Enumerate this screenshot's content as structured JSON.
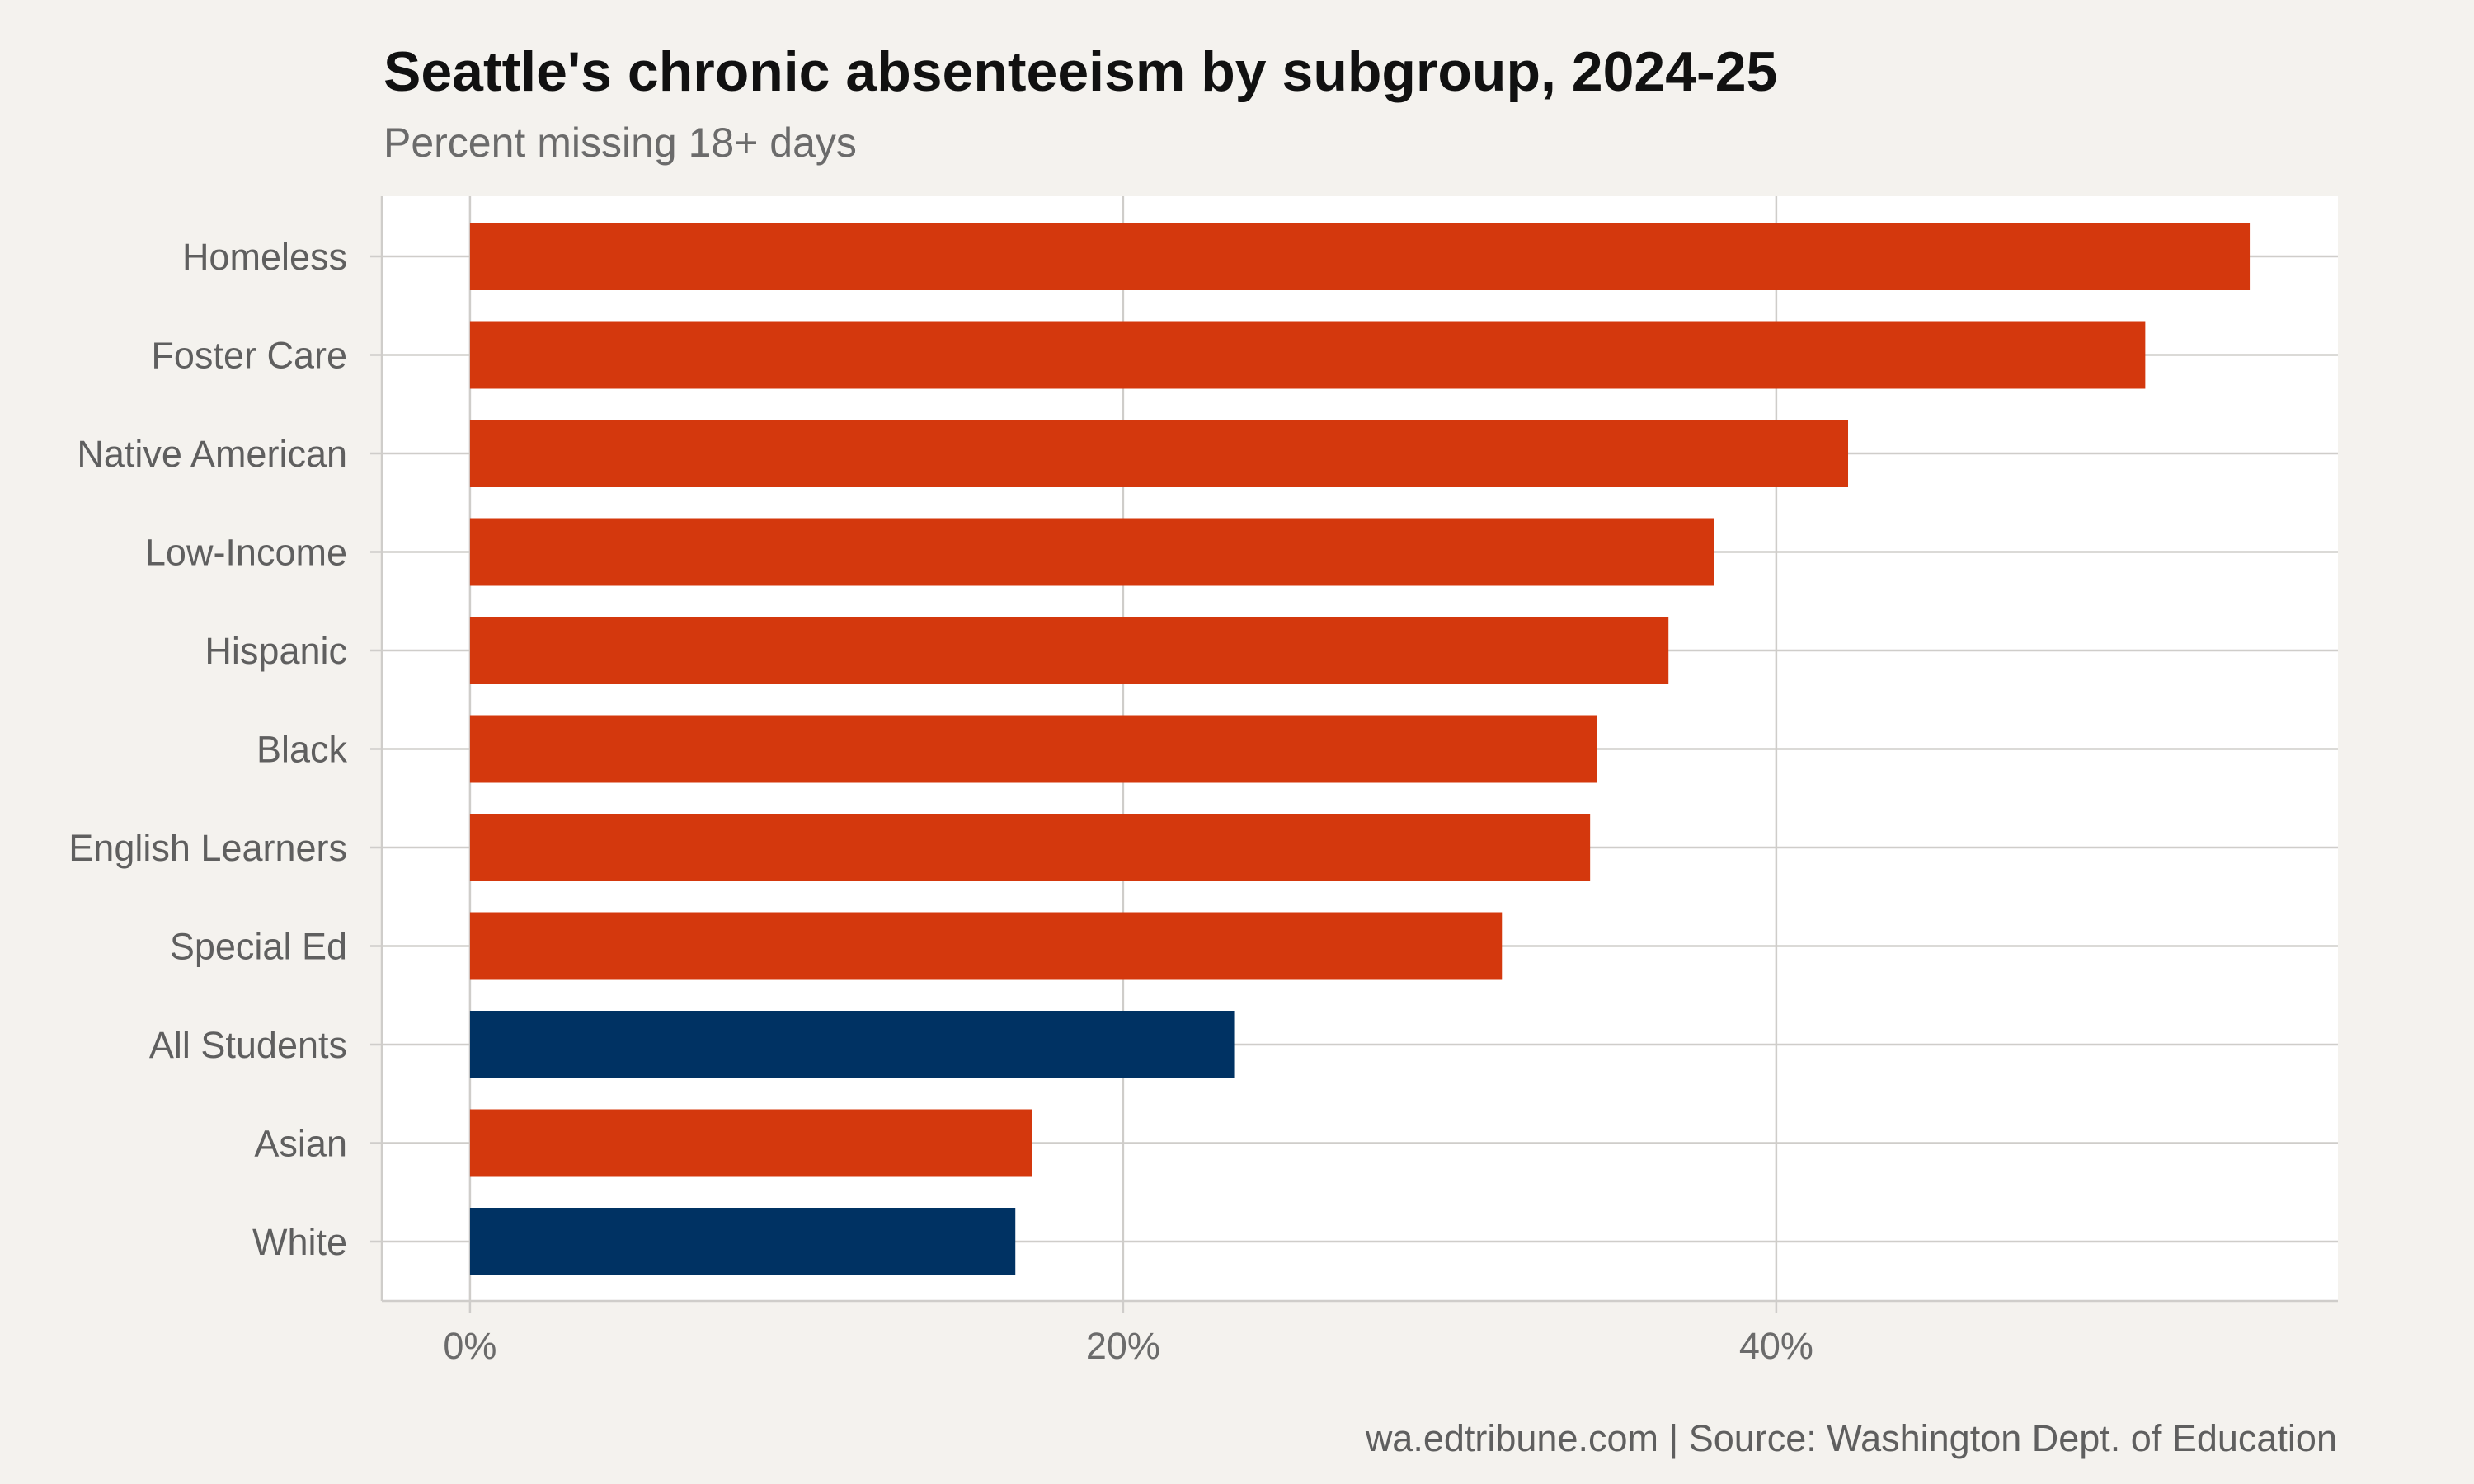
{
  "chart_data": {
    "type": "bar",
    "orientation": "horizontal",
    "title": "Seattle's chronic absenteeism by subgroup, 2024-25",
    "subtitle": "Percent missing 18+ days",
    "caption": "wa.edtribune.com | Source: Washington Dept. of Education",
    "categories": [
      "Homeless",
      "Foster Care",
      "Native American",
      "Low-Income",
      "Hispanic",
      "Black",
      "English Learners",
      "Special Ed",
      "All Students",
      "Asian",
      "White"
    ],
    "values": [
      54.5,
      51.3,
      42.2,
      38.1,
      36.7,
      34.5,
      34.3,
      31.6,
      23.4,
      17.2,
      16.7
    ],
    "highlight": [
      false,
      false,
      false,
      false,
      false,
      false,
      false,
      false,
      true,
      false,
      true
    ],
    "xlim": [
      -2.7,
      57.2
    ],
    "xticks": [
      0,
      20,
      40
    ],
    "xtick_labels": [
      "0%",
      "20%",
      "40%"
    ],
    "xlabel": "",
    "ylabel": "",
    "grid": true,
    "colors": {
      "bar": "#d4380d",
      "highlight": "#003263",
      "background": "#f4f2ee",
      "panel": "#ffffff",
      "grid": "#cfcdca"
    }
  }
}
